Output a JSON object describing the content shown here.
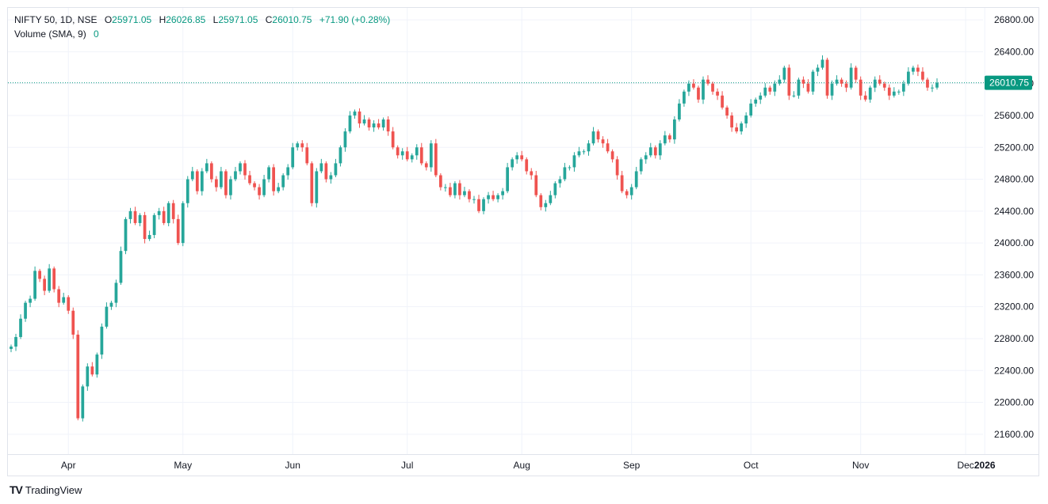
{
  "header": {
    "symbol": "NIFTY 50, 1D, NSE",
    "open_label": "O",
    "open": "25971.05",
    "high_label": "H",
    "high": "26026.85",
    "low_label": "L",
    "low": "25971.05",
    "close_label": "C",
    "close": "26010.75",
    "change": "+71.90 (+0.28%)",
    "volume_label": "Volume (SMA, 9)",
    "volume_value": "0"
  },
  "brand": {
    "name": "TradingView"
  },
  "colors": {
    "up": "#089981",
    "down": "#f23645",
    "up_candle": "#26a69a",
    "down_candle": "#ef5350",
    "grid": "#f0f3fa",
    "price_line": "#089981"
  },
  "chart_data": {
    "type": "candlestick",
    "ylim": [
      21350,
      26950
    ],
    "y_ticks": [
      "26800.00",
      "26400.00",
      "26000.00",
      "25600.00",
      "25200.00",
      "24800.00",
      "24400.00",
      "24000.00",
      "23600.00",
      "23200.00",
      "22800.00",
      "22400.00",
      "22000.00",
      "21600.00"
    ],
    "x_ticks": [
      "Apr",
      "May",
      "Jun",
      "Jul",
      "Aug",
      "Sep",
      "Oct",
      "Nov",
      "Dec",
      "2026"
    ],
    "last_price": "26010.75",
    "closes": [
      22700,
      22820,
      23050,
      23250,
      23300,
      23650,
      23550,
      23400,
      23680,
      23420,
      23250,
      23320,
      23150,
      22850,
      21800,
      22200,
      22450,
      22350,
      22600,
      22950,
      23200,
      23250,
      23500,
      23900,
      24300,
      24400,
      24250,
      24350,
      24050,
      24100,
      24350,
      24400,
      24250,
      24500,
      24300,
      24000,
      24500,
      24800,
      24900,
      24650,
      24900,
      25000,
      24800,
      24700,
      24900,
      24600,
      24800,
      24900,
      25000,
      24850,
      24750,
      24700,
      24600,
      24800,
      24950,
      24650,
      24700,
      24850,
      24950,
      25200,
      25250,
      25200,
      25000,
      24500,
      24900,
      25000,
      24800,
      24850,
      25000,
      25200,
      25400,
      25600,
      25650,
      25500,
      25550,
      25450,
      25500,
      25450,
      25550,
      25400,
      25200,
      25100,
      25150,
      25050,
      25100,
      25200,
      25000,
      24950,
      25250,
      24850,
      24700,
      24700,
      24600,
      24750,
      24600,
      24650,
      24550,
      24550,
      24400,
      24550,
      24600,
      24550,
      24600,
      24650,
      24950,
      25050,
      25100,
      25050,
      24900,
      24850,
      24600,
      24450,
      24500,
      24600,
      24750,
      24800,
      24950,
      24950,
      25100,
      25150,
      25150,
      25250,
      25400,
      25300,
      25250,
      25150,
      25050,
      24850,
      24650,
      24600,
      24700,
      24900,
      25050,
      25100,
      25200,
      25100,
      25250,
      25350,
      25300,
      25550,
      25750,
      25900,
      26000,
      25950,
      25800,
      26050,
      26000,
      25900,
      25850,
      25700,
      25600,
      25450,
      25400,
      25500,
      25600,
      25750,
      25800,
      25850,
      25950,
      25900,
      26000,
      26050,
      26200,
      25850,
      25850,
      26050,
      26000,
      25900,
      26150,
      26200,
      26300,
      25850,
      26000,
      26050,
      26000,
      25950,
      26200,
      26050,
      25850,
      25800,
      25950,
      26050,
      26000,
      25950,
      25850,
      25900,
      25900,
      26000,
      26150,
      26200,
      26150,
      26050,
      25950,
      25950,
      26010.75
    ],
    "volume_sma": "0"
  }
}
